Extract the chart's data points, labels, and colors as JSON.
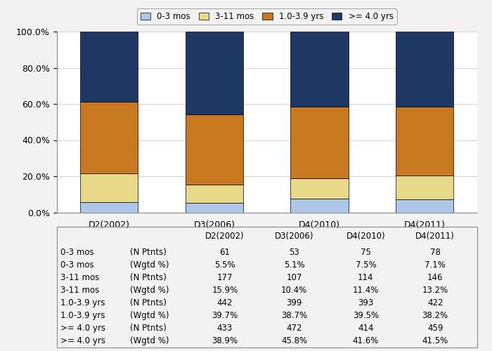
{
  "categories": [
    "D2(2002)",
    "D3(2006)",
    "D4(2010)",
    "D4(2011)"
  ],
  "series": {
    "0-3 mos": [
      5.5,
      5.1,
      7.5,
      7.1
    ],
    "3-11 mos": [
      15.9,
      10.4,
      11.4,
      13.2
    ],
    "1.0-3.9 yrs": [
      39.7,
      38.7,
      39.5,
      38.2
    ],
    ">= 4.0 yrs": [
      38.9,
      45.8,
      41.6,
      41.5
    ]
  },
  "colors": {
    "0-3 mos": "#aec6e8",
    "3-11 mos": "#e8d98a",
    "1.0-3.9 yrs": "#c87820",
    ">= 4.0 yrs": "#1f3864"
  },
  "legend_labels": [
    "0-3 mos",
    "3-11 mos",
    "1.0-3.9 yrs",
    ">= 4.0 yrs"
  ],
  "yticks": [
    0,
    20,
    40,
    60,
    80,
    100
  ],
  "ytick_labels": [
    "0.0%",
    "20.0%",
    "40.0%",
    "60.0%",
    "80.0%",
    "100.0%"
  ],
  "table_rows": [
    [
      "0-3 mos",
      "(N Ptnts)",
      "61",
      "53",
      "75",
      "78"
    ],
    [
      "0-3 mos",
      "(Wgtd %)",
      "5.5%",
      "5.1%",
      "7.5%",
      "7.1%"
    ],
    [
      "3-11 mos",
      "(N Ptnts)",
      "177",
      "107",
      "114",
      "146"
    ],
    [
      "3-11 mos",
      "(Wgtd %)",
      "15.9%",
      "10.4%",
      "11.4%",
      "13.2%"
    ],
    [
      "1.0-3.9 yrs",
      "(N Ptnts)",
      "442",
      "399",
      "393",
      "422"
    ],
    [
      "1.0-3.9 yrs",
      "(Wgtd %)",
      "39.7%",
      "38.7%",
      "39.5%",
      "38.2%"
    ],
    [
      ">= 4.0 yrs",
      "(N Ptnts)",
      "433",
      "472",
      "414",
      "459"
    ],
    [
      ">= 4.0 yrs",
      "(Wgtd %)",
      "38.9%",
      "45.8%",
      "41.6%",
      "41.5%"
    ]
  ],
  "table_header": [
    "",
    "D2(2002)",
    "D3(2006)",
    "D4(2010)",
    "D4(2011)"
  ],
  "bg_color": "#f2f2f2",
  "plot_bg_color": "#ffffff",
  "bar_width": 0.55
}
